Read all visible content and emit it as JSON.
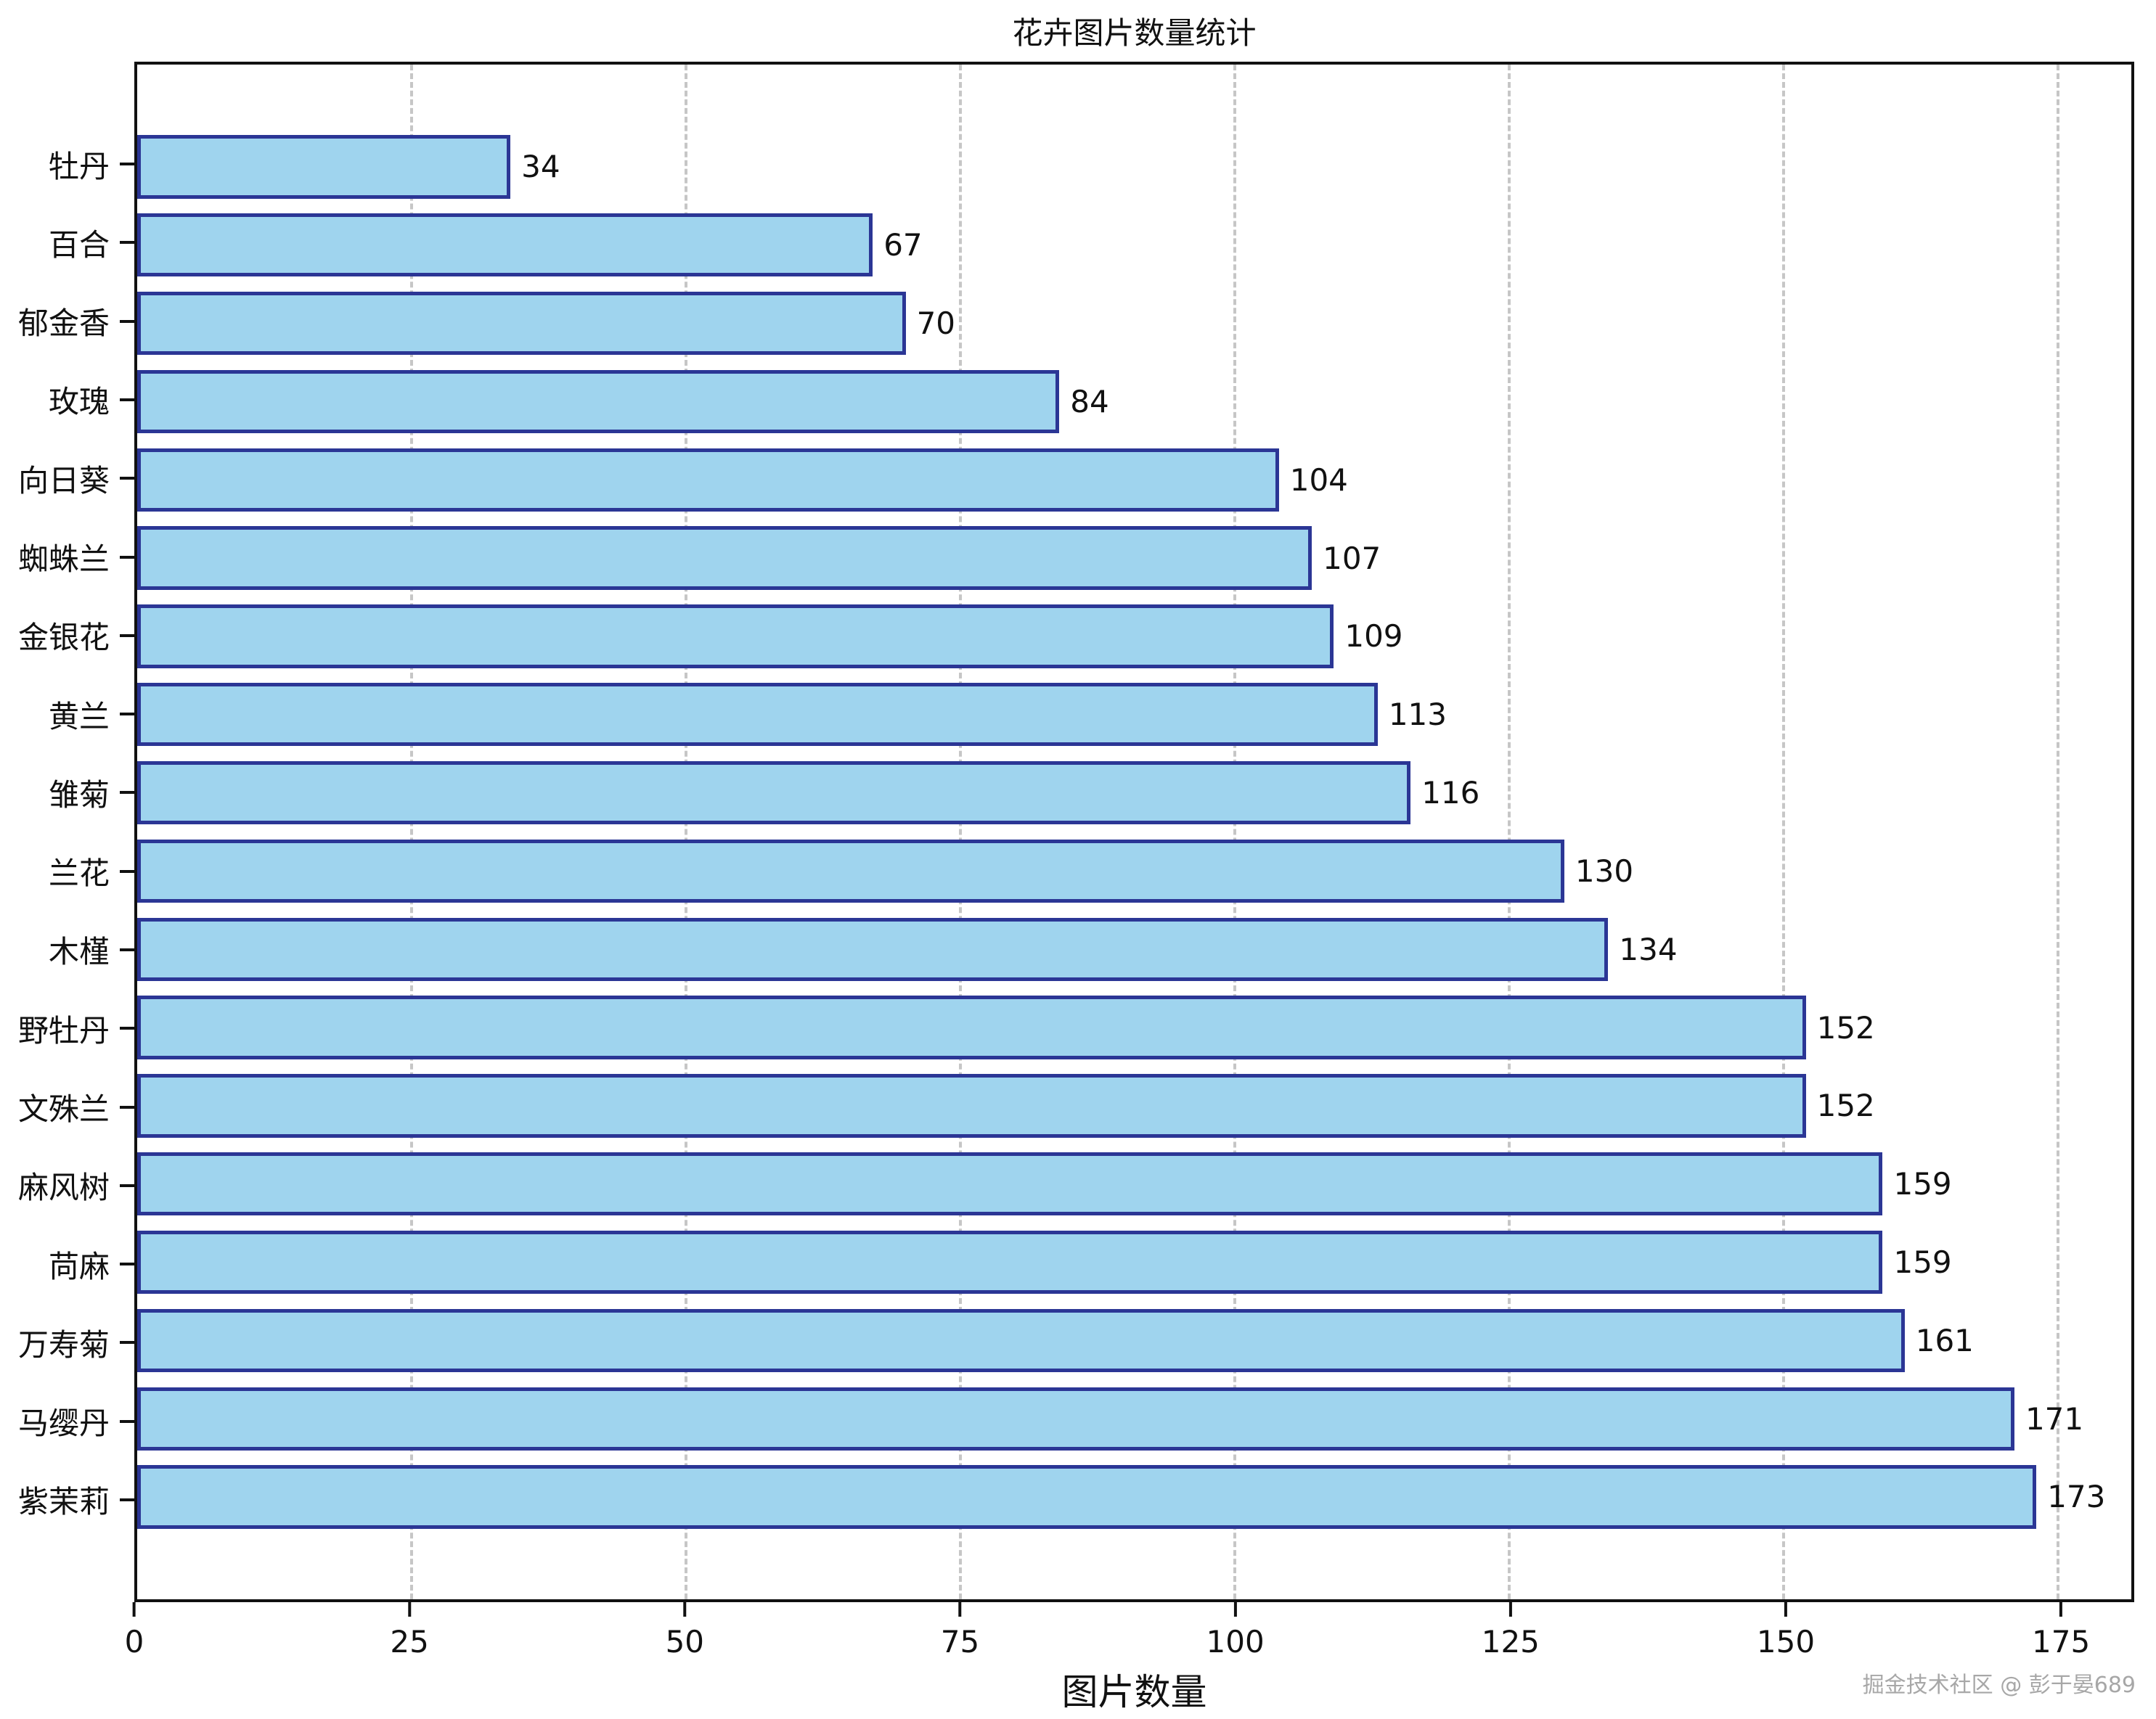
{
  "title": "花卉图片数量统计",
  "watermark": "掘金技术社区 @ 彭于晏689",
  "colors": {
    "bar_fill": "#9fd4ee",
    "bar_edge": "#2b3695",
    "gridline": "#c6c6c6",
    "axis": "#111111",
    "watermark": "#a7a7a7"
  },
  "chart_data": {
    "type": "bar",
    "orientation": "horizontal",
    "title": "花卉图片数量统计",
    "xlabel": "图片数量",
    "ylabel": "",
    "categories": [
      "牡丹",
      "百合",
      "郁金香",
      "玫瑰",
      "向日葵",
      "蜘蛛兰",
      "金银花",
      "黄兰",
      "雏菊",
      "兰花",
      "木槿",
      "野牡丹",
      "文殊兰",
      "麻风树",
      "苘麻",
      "万寿菊",
      "马缨丹",
      "紫茉莉"
    ],
    "values": [
      34,
      67,
      70,
      84,
      104,
      107,
      109,
      113,
      116,
      130,
      134,
      152,
      152,
      159,
      159,
      161,
      171,
      173
    ],
    "value_labels_shown": true,
    "x_ticks": [
      0,
      25,
      50,
      75,
      100,
      125,
      150,
      175
    ],
    "xlim": [
      0,
      181.65
    ],
    "grid": "vertical-dashed",
    "legend": "none"
  }
}
